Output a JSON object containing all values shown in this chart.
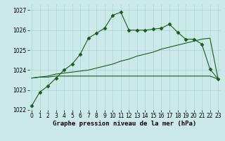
{
  "xlabel": "Graphe pression niveau de la mer (hPa)",
  "x": [
    0,
    1,
    2,
    3,
    4,
    5,
    6,
    7,
    8,
    9,
    10,
    11,
    12,
    13,
    14,
    15,
    16,
    17,
    18,
    19,
    20,
    21,
    22,
    23
  ],
  "line1": [
    1022.2,
    1022.9,
    1023.2,
    1023.6,
    1024.0,
    1024.3,
    1024.8,
    1025.6,
    1025.85,
    1026.1,
    1026.75,
    1026.9,
    1026.0,
    1026.0,
    1026.0,
    1026.05,
    1026.1,
    1026.3,
    1025.9,
    1025.55,
    1025.55,
    1025.3,
    1024.05,
    1023.55
  ],
  "line2": [
    1023.6,
    1023.65,
    1023.65,
    1023.7,
    1023.7,
    1023.7,
    1023.7,
    1023.7,
    1023.7,
    1023.7,
    1023.7,
    1023.7,
    1023.7,
    1023.7,
    1023.7,
    1023.7,
    1023.7,
    1023.7,
    1023.7,
    1023.7,
    1023.7,
    1023.7,
    1023.7,
    1023.55
  ],
  "line3": [
    1023.6,
    1023.65,
    1023.7,
    1023.8,
    1023.85,
    1023.9,
    1023.95,
    1024.0,
    1024.1,
    1024.2,
    1024.3,
    1024.45,
    1024.55,
    1024.7,
    1024.8,
    1024.9,
    1025.05,
    1025.15,
    1025.25,
    1025.35,
    1025.45,
    1025.55,
    1025.6,
    1023.55
  ],
  "bg_color": "#cce9e9",
  "grid_color": "#aad4d4",
  "line_color": "#1a5c1a",
  "line_width": 0.8,
  "marker": "D",
  "marker_size": 2.5,
  "ylim": [
    1022.0,
    1027.3
  ],
  "yticks": [
    1022,
    1023,
    1024,
    1025,
    1026,
    1027
  ],
  "xticks": [
    0,
    1,
    2,
    3,
    4,
    5,
    6,
    7,
    8,
    9,
    10,
    11,
    12,
    13,
    14,
    15,
    16,
    17,
    18,
    19,
    20,
    21,
    22,
    23
  ],
  "xlabel_fontsize": 6.5,
  "tick_fontsize": 5.5
}
